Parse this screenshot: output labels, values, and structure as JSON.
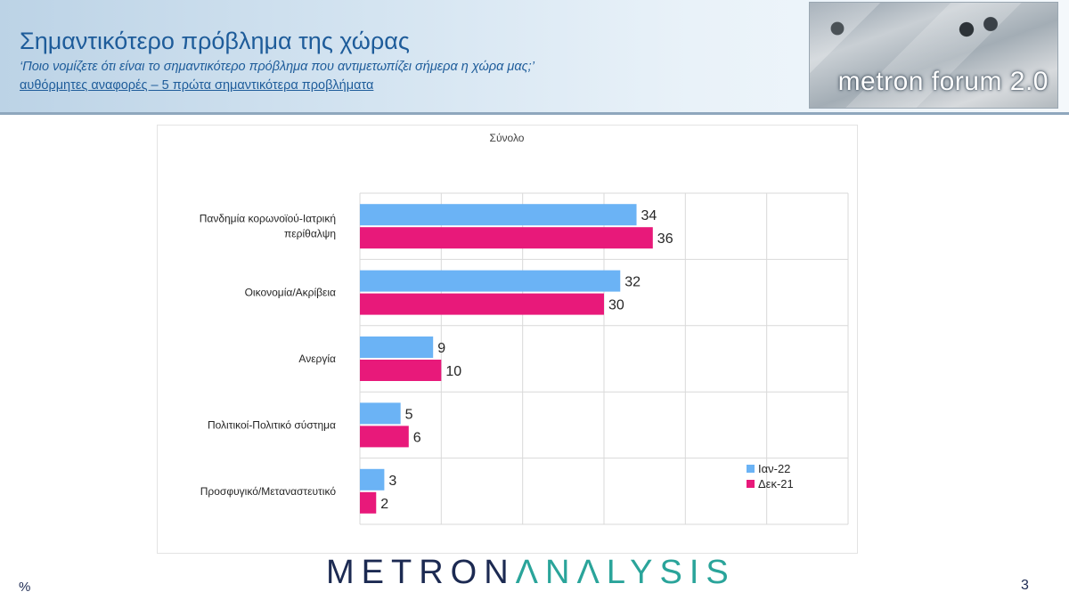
{
  "header": {
    "title": "Σημαντικότερο πρόβλημα της χώρας",
    "subtitle": "‘Ποιο νομίζετε ότι  είναι το σημαντικότερο πρόβλημα που αντιμετωπίζει σήμερα η χώρα μας;’",
    "subnote": "αυθόρμητες αναφορές – 5 πρώτα σημαντικότερα προβλήματα",
    "logo_text": "metron forum 2.0"
  },
  "footer": {
    "logo_part1": "METRON",
    "logo_part2": "ΛNΛLYSIS",
    "percent": "%",
    "page_number": "3"
  },
  "colors": {
    "series1": "#6bb3f5",
    "series2": "#e8197a"
  },
  "chart_data": {
    "type": "bar",
    "orientation": "horizontal",
    "title": "Σύνολο",
    "categories": [
      [
        "Πανδημία κορωνοϊού-Ιατρική",
        "περίθαλψη"
      ],
      [
        "Οικονομία/Ακρίβεια"
      ],
      [
        "Ανεργία"
      ],
      [
        "Πολιτικοί-Πολιτικό σύστημα"
      ],
      [
        "Προσφυγικό/Μεταναστευτικό"
      ]
    ],
    "series": [
      {
        "name": "Ιαν-22",
        "values": [
          34,
          32,
          9,
          5,
          3
        ]
      },
      {
        "name": "Δεκ-21",
        "values": [
          36,
          30,
          10,
          6,
          2
        ]
      }
    ],
    "xlim": [
      0,
      60
    ],
    "grid": true,
    "legend": "bottom-right"
  }
}
